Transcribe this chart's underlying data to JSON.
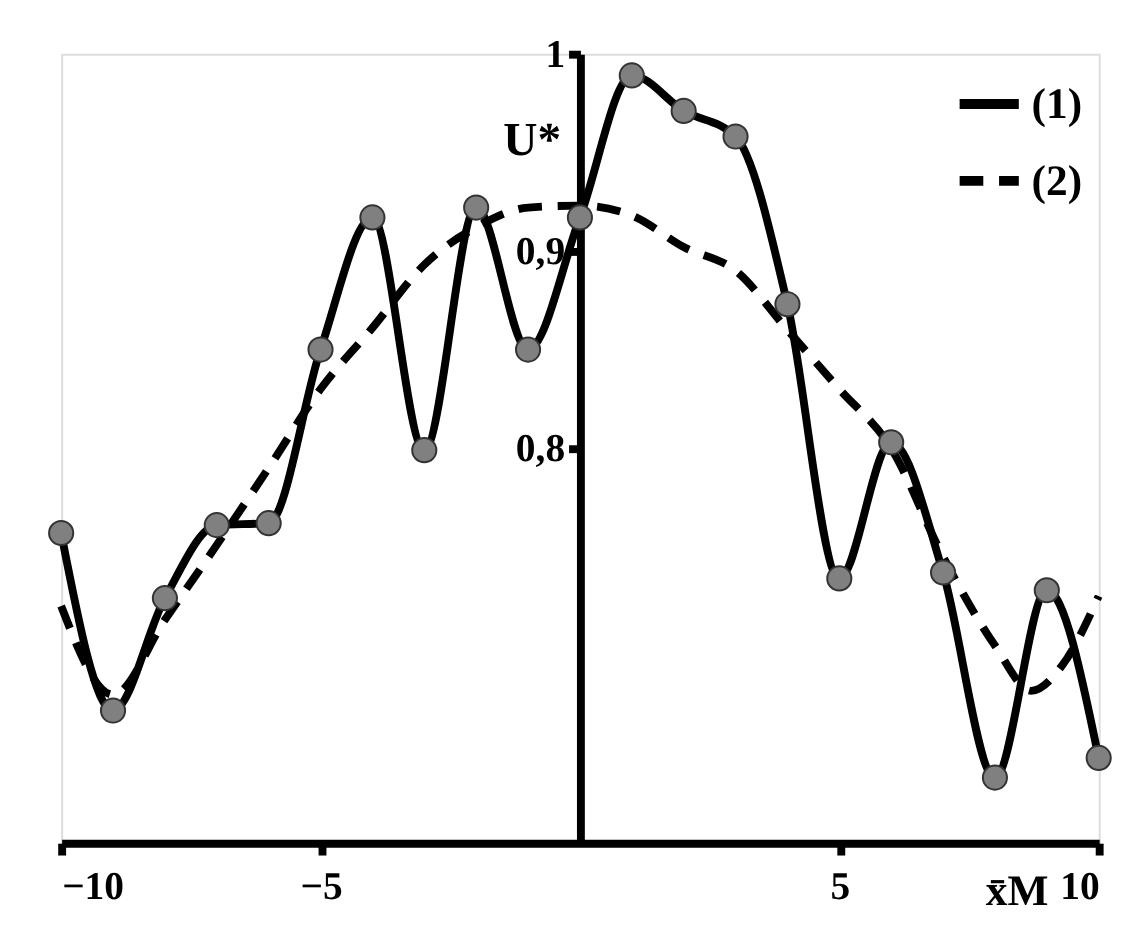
{
  "chart_data": {
    "type": "line",
    "xlabel": "x̄M",
    "ylabel": "U*",
    "xlim": [
      -10,
      10
    ],
    "ylim": [
      0.6,
      1.0
    ],
    "xticks": [
      -10,
      -5,
      5,
      10
    ],
    "yticks": [
      {
        "value": 0.8,
        "label": "0,8"
      },
      {
        "value": 0.9,
        "label": "0,9"
      },
      {
        "value": 1,
        "label": "1"
      }
    ],
    "grid": false,
    "legend": "top right",
    "series": [
      {
        "name": "(1)",
        "color": "#000000",
        "marker": "circle",
        "line_style": "solid",
        "x": [
          -10,
          -9,
          -8,
          -7,
          -6,
          -5,
          -4,
          -3,
          -2,
          -1,
          0,
          1,
          2,
          3,
          4,
          5,
          6,
          7,
          8,
          9,
          10
        ],
        "values": [
          0.757,
          0.667,
          0.724,
          0.761,
          0.762,
          0.85,
          0.917,
          0.799,
          0.922,
          0.85,
          0.917,
          0.989,
          0.971,
          0.958,
          0.873,
          0.734,
          0.803,
          0.737,
          0.633,
          0.728,
          0.643
        ]
      },
      {
        "name": "(2)",
        "color": "#000000",
        "marker": "none",
        "line_style": "dashed",
        "x": [
          -10,
          -9,
          -8,
          -7,
          -6,
          -5,
          -4,
          -3,
          -2,
          -1,
          0,
          1,
          2,
          3,
          4,
          5,
          6,
          7,
          8,
          8.7,
          9.3,
          10
        ],
        "values": [
          0.72,
          0.675,
          0.713,
          0.751,
          0.79,
          0.83,
          0.861,
          0.893,
          0.912,
          0.922,
          0.923,
          0.918,
          0.902,
          0.89,
          0.86,
          0.83,
          0.8,
          0.745,
          0.7,
          0.677,
          0.69,
          0.725
        ]
      }
    ]
  }
}
